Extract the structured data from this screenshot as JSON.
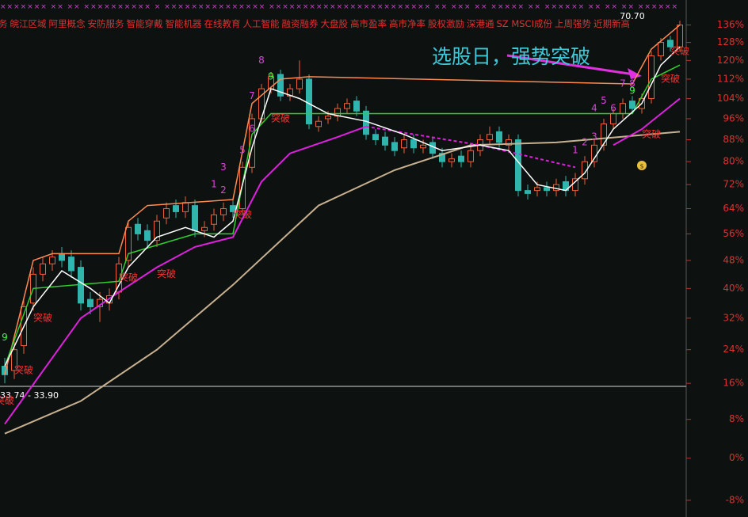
{
  "chart_data": {
    "type": "candlestick",
    "top_marks": "××××××× ×× ×× ×××××××××× × ××××××××××××××× ×××××××××××××××××××××××× ×× ××× ×× ××××× ×× ×××××× ×× ×× ×× ××××××",
    "tags": [
      "务",
      "皖江区域",
      "阿里概念",
      "安防服务",
      "智能穿戴",
      "智能机器",
      "在线教育",
      "人工智能",
      "融资融券",
      "大盘股",
      "高市盈率",
      "高市净率",
      "股权激励",
      "深港通",
      "SZ MSCI成份",
      "上周强势",
      "近期新高"
    ],
    "annotation": "选股日，强势突破",
    "yscale": "log",
    "ylim": [
      -11,
      148
    ],
    "yticks": [
      {
        "value": 136,
        "label": "136%"
      },
      {
        "value": 128,
        "label": "128%"
      },
      {
        "value": 120,
        "label": "120%"
      },
      {
        "value": 112,
        "label": "112%"
      },
      {
        "value": 104,
        "label": "104%"
      },
      {
        "value": 96,
        "label": "96%"
      },
      {
        "value": 88,
        "label": "88%"
      },
      {
        "value": 80,
        "label": "80%"
      },
      {
        "value": 72,
        "label": "72%"
      },
      {
        "value": 64,
        "label": "64%"
      },
      {
        "value": 56,
        "label": "56%"
      },
      {
        "value": 48,
        "label": "48%"
      },
      {
        "value": 40,
        "label": "40%"
      },
      {
        "value": 32,
        "label": "32%"
      },
      {
        "value": 24,
        "label": "24%"
      },
      {
        "value": 16,
        "label": "16%"
      },
      {
        "value": 8,
        "label": "8%"
      },
      {
        "value": 0,
        "label": "0%"
      },
      {
        "value": -8,
        "label": "-8%"
      }
    ],
    "up_color": "#f0603a",
    "down_color": "#2fb5ad",
    "open": [
      20,
      19,
      25,
      36,
      44,
      47,
      50,
      49,
      46,
      37,
      35,
      36,
      39,
      48,
      59,
      57,
      54,
      61,
      65,
      63,
      65,
      57,
      59,
      62,
      65,
      64,
      78,
      96,
      108,
      114,
      105,
      108,
      112,
      93,
      96,
      97,
      100,
      103,
      99,
      90,
      89,
      87,
      85,
      88,
      85,
      87,
      83,
      80,
      82,
      80,
      84,
      88,
      91,
      86,
      88,
      70,
      70,
      71,
      70,
      73,
      70,
      74,
      80,
      86,
      94,
      98,
      103,
      100,
      104,
      122,
      129,
      126
    ],
    "high": [
      22,
      26,
      37,
      46,
      49,
      51,
      52,
      51,
      48,
      39,
      39,
      40,
      49,
      60,
      61,
      59,
      62,
      66,
      67,
      68,
      67,
      60,
      64,
      66,
      67,
      80,
      98,
      110,
      115,
      116,
      110,
      120,
      114,
      97,
      99,
      102,
      104,
      105,
      101,
      92,
      91,
      89,
      90,
      90,
      88,
      89,
      85,
      83,
      84,
      86,
      90,
      93,
      93,
      90,
      90,
      72,
      73,
      73,
      74,
      75,
      76,
      82,
      88,
      96,
      100,
      104,
      105,
      106,
      124,
      130,
      131,
      138
    ],
    "low": [
      16,
      17,
      23,
      34,
      42,
      45,
      46,
      43,
      34,
      33,
      31,
      34,
      37,
      46,
      54,
      52,
      52,
      59,
      61,
      61,
      55,
      55,
      57,
      60,
      61,
      62,
      76,
      94,
      106,
      103,
      103,
      106,
      92,
      91,
      94,
      95,
      98,
      97,
      88,
      86,
      84,
      82,
      83,
      83,
      83,
      81,
      78,
      78,
      78,
      78,
      82,
      86,
      85,
      84,
      68,
      67,
      68,
      68,
      68,
      68,
      68,
      72,
      78,
      84,
      92,
      96,
      98,
      98,
      102,
      120,
      124,
      124
    ],
    "close": [
      18,
      24,
      35,
      44,
      47,
      49,
      48,
      45,
      36,
      35,
      37,
      38,
      47,
      58,
      56,
      54,
      60,
      64,
      63,
      66,
      57,
      58,
      62,
      64,
      63,
      78,
      96,
      108,
      113,
      105,
      108,
      112,
      94,
      95,
      97,
      100,
      102,
      99,
      90,
      88,
      86,
      84,
      88,
      85,
      86,
      83,
      80,
      81,
      80,
      84,
      88,
      90,
      87,
      88,
      70,
      69,
      71,
      70,
      72,
      70,
      74,
      80,
      86,
      94,
      98,
      102,
      100,
      104,
      122,
      128,
      126,
      136
    ],
    "lines": [
      {
        "color": "#c8b090",
        "style": "solid",
        "x": [
          0,
          8,
          16,
          24,
          33,
          41,
          49,
          58,
          71
        ],
        "values": [
          5,
          12,
          24,
          41,
          65,
          77,
          86,
          87,
          91
        ]
      },
      {
        "color": "#e020e0",
        "style": "solid",
        "x": [
          0,
          8,
          12,
          16,
          20,
          24,
          27,
          30,
          35,
          38
        ],
        "values": [
          7,
          32,
          39,
          46,
          52,
          55,
          73,
          83,
          89,
          93
        ]
      },
      {
        "color": "#e020e0",
        "style": "dashed",
        "x": [
          38,
          50,
          60
        ],
        "values": [
          93,
          86,
          78
        ]
      },
      {
        "color": "#e020e0",
        "style": "solid",
        "x": [
          64,
          67,
          71
        ],
        "values": [
          86,
          92,
          104
        ]
      },
      {
        "color": "#ff8a50",
        "style": "solid",
        "x": [
          0,
          3,
          5,
          12,
          13,
          15,
          24,
          26,
          29,
          32,
          66,
          68,
          71
        ],
        "values": [
          18,
          48,
          50,
          50,
          60,
          65,
          67,
          102,
          112,
          113,
          110,
          125,
          136
        ]
      },
      {
        "color": "#30d030",
        "style": "solid",
        "x": [
          0,
          3,
          12,
          13,
          20,
          24,
          26,
          28,
          38,
          66,
          68,
          71
        ],
        "values": [
          20,
          40,
          42,
          50,
          56,
          56,
          90,
          98,
          98,
          98,
          112,
          118
        ]
      },
      {
        "color": "#ffffff",
        "style": "solid",
        "x": [
          0,
          3,
          6,
          9,
          11,
          13,
          16,
          19,
          22,
          24,
          26,
          28,
          31,
          34,
          38,
          42,
          46,
          50,
          53,
          56,
          59,
          61,
          64,
          67,
          69,
          71
        ],
        "values": [
          20,
          35,
          45,
          40,
          36,
          46,
          55,
          58,
          55,
          60,
          85,
          108,
          104,
          98,
          95,
          90,
          84,
          86,
          84,
          72,
          70,
          76,
          92,
          102,
          118,
          126
        ]
      }
    ],
    "labels": [
      {
        "text": "突破",
        "x": 0,
        "y": 12,
        "color": "#ff3030"
      },
      {
        "text": "突破",
        "x": 2,
        "y": 19,
        "color": "#ff3030"
      },
      {
        "text": "突破",
        "x": 4,
        "y": 32,
        "color": "#ff3030"
      },
      {
        "text": "突破",
        "x": 13,
        "y": 43,
        "color": "#ff3030"
      },
      {
        "text": "突破",
        "x": 17,
        "y": 44,
        "color": "#ff3030"
      },
      {
        "text": "突破",
        "x": 25,
        "y": 62,
        "color": "#ff3030"
      },
      {
        "text": "突破",
        "x": 29,
        "y": 96,
        "color": "#ff3030"
      },
      {
        "text": "突破",
        "x": 68,
        "y": 90,
        "color": "#ff3030"
      },
      {
        "text": "突破",
        "x": 71,
        "y": 124,
        "color": "#ff3030"
      },
      {
        "text": "突破",
        "x": 70,
        "y": 112,
        "color": "#ff3030"
      },
      {
        "text": "9",
        "x": 0,
        "y": 27,
        "color": "#40ff40"
      },
      {
        "text": "1",
        "x": 22,
        "y": 72,
        "color": "#e040e0"
      },
      {
        "text": "2",
        "x": 23,
        "y": 70,
        "color": "#e040e0"
      },
      {
        "text": "3",
        "x": 23,
        "y": 78,
        "color": "#e040e0"
      },
      {
        "text": "5",
        "x": 25,
        "y": 84,
        "color": "#e040e0"
      },
      {
        "text": "6",
        "x": 26,
        "y": 92,
        "color": "#e040e0"
      },
      {
        "text": "7",
        "x": 26,
        "y": 105,
        "color": "#e040e0"
      },
      {
        "text": "8",
        "x": 27,
        "y": 120,
        "color": "#e040e0"
      },
      {
        "text": "9",
        "x": 28,
        "y": 113,
        "color": "#40ff40"
      },
      {
        "text": "1",
        "x": 60,
        "y": 84,
        "color": "#e040e0"
      },
      {
        "text": "2",
        "x": 61,
        "y": 87,
        "color": "#e040e0"
      },
      {
        "text": "3",
        "x": 62,
        "y": 89,
        "color": "#e040e0"
      },
      {
        "text": "4",
        "x": 62,
        "y": 100,
        "color": "#e040e0"
      },
      {
        "text": "5",
        "x": 63,
        "y": 103,
        "color": "#e040e0"
      },
      {
        "text": "6",
        "x": 64,
        "y": 100,
        "color": "#e040e0"
      },
      {
        "text": "7",
        "x": 65,
        "y": 110,
        "color": "#e040e0"
      },
      {
        "text": "8",
        "x": 66,
        "y": 110,
        "color": "#e040e0"
      },
      {
        "text": "9",
        "x": 66,
        "y": 107,
        "color": "#40ff40"
      },
      {
        "text": "70.70",
        "x": 66,
        "y": 140,
        "color": "#ffffff"
      }
    ],
    "hline": {
      "value": 15.3,
      "label": "33.74 - 33.90"
    }
  }
}
